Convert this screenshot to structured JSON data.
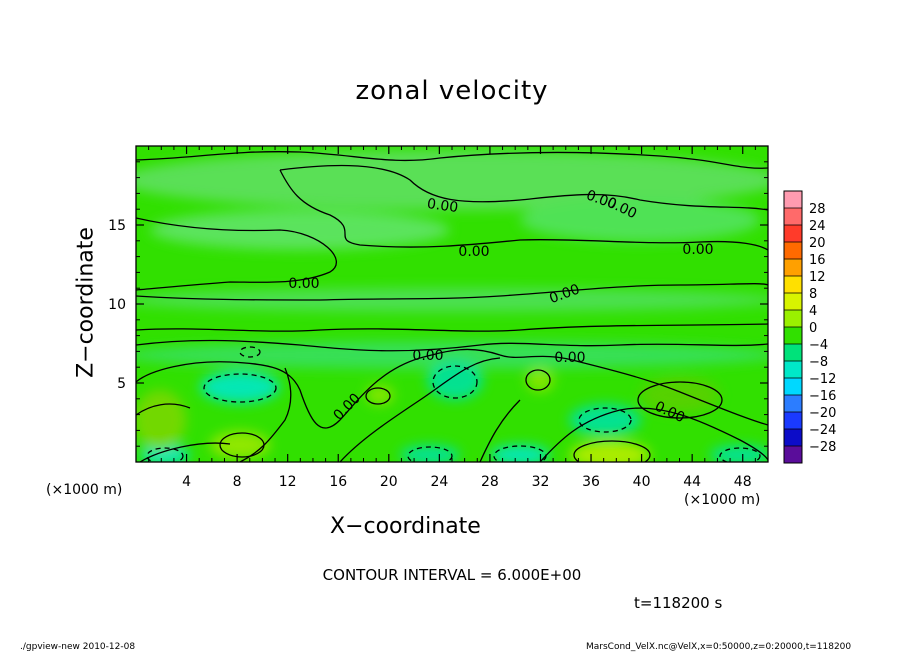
{
  "chart_data": {
    "type": "heatmap",
    "title": "zonal velocity",
    "xlabel": "X−coordinate",
    "ylabel": "Z−coordinate",
    "x_unit_label": "(×1000 m)",
    "y_unit_label": "(×1000 m)",
    "x_ticks": [
      "4",
      "8",
      "12",
      "16",
      "20",
      "24",
      "28",
      "32",
      "36",
      "40",
      "44",
      "48"
    ],
    "x_range": [
      0,
      50
    ],
    "y_ticks": [
      "5",
      "10",
      "15"
    ],
    "y_range": [
      0,
      20
    ],
    "colorbar_labels": [
      "28",
      "24",
      "20",
      "16",
      "12",
      "8",
      "4",
      "0",
      "−4",
      "−8",
      "−12",
      "−16",
      "−20",
      "−24",
      "−28"
    ],
    "colorbar_colors": [
      "#ff9bb0",
      "#ff6a6a",
      "#ff3b2a",
      "#ff6a00",
      "#ffa000",
      "#ffe000",
      "#d8f400",
      "#9af000",
      "#31e000",
      "#00e27a",
      "#00e8c8",
      "#00d8ff",
      "#2c7dff",
      "#1a3aff",
      "#0c0cc8",
      "#5a0d9a"
    ],
    "contour_interval": "CONTOUR INTERVAL = 6.000E+00",
    "contour_labels": [
      "0.00",
      "0.00",
      "0.00",
      "0.00",
      "0.00",
      "0.00",
      "0.00",
      "0.00",
      "0.00",
      "0.00",
      "0.00"
    ],
    "grid": false,
    "legend": "colorbar-right"
  },
  "time_label": "t=118200 s",
  "footer_left": "./gpview-new  2010-12-08",
  "footer_right": "MarsCond_VelX.nc@VelX,x=0:50000,z=0:20000,t=118200"
}
